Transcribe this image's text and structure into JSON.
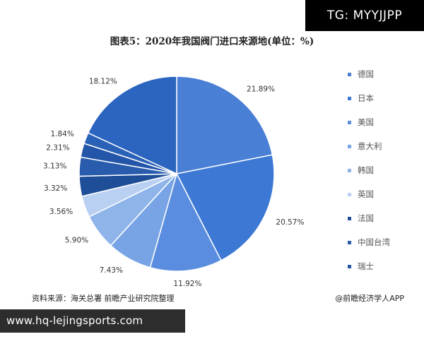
{
  "watermark_badge": "TG: MYYJJPP",
  "chart_data": {
    "type": "pie",
    "title": "图表5：2020年我国阀门进口来源地(单位：%)",
    "legend_position": "right",
    "slices": [
      {
        "name": "德国",
        "value": 21.89,
        "label": "21.89%",
        "color": "#4a7fd6"
      },
      {
        "name": "日本",
        "value": 20.57,
        "label": "20.57%",
        "color": "#3d79d4"
      },
      {
        "name": "美国",
        "value": 11.92,
        "label": "11.92%",
        "color": "#5a8de0"
      },
      {
        "name": "意大利",
        "value": 7.43,
        "label": "7.43%",
        "color": "#78a4e6"
      },
      {
        "name": "韩国",
        "value": 5.9,
        "label": "5.90%",
        "color": "#8fb4ea"
      },
      {
        "name": "英国",
        "value": 3.56,
        "label": "3.56%",
        "color": "#b9d0f2"
      },
      {
        "name": "法国",
        "value": 3.32,
        "label": "3.32%",
        "color": "#1f4e99"
      },
      {
        "name": "中国台湾",
        "value": 3.13,
        "label": "3.13%",
        "color": "#2a5cae"
      },
      {
        "name": "瑞士",
        "value": 2.31,
        "label": "2.31%",
        "color": "#2356a8"
      },
      {
        "name": "",
        "value": 1.84,
        "label": "1.84%",
        "color": "#2a62b8"
      },
      {
        "name": "",
        "value": 18.12,
        "label": "18.12%",
        "color": "#2b65bf"
      }
    ]
  },
  "footer": {
    "source": "资料来源：海关总署 前瞻产业研究院整理",
    "brand": "@前瞻经济学人APP"
  },
  "url_banner": "www.hq-lejingsports.com"
}
